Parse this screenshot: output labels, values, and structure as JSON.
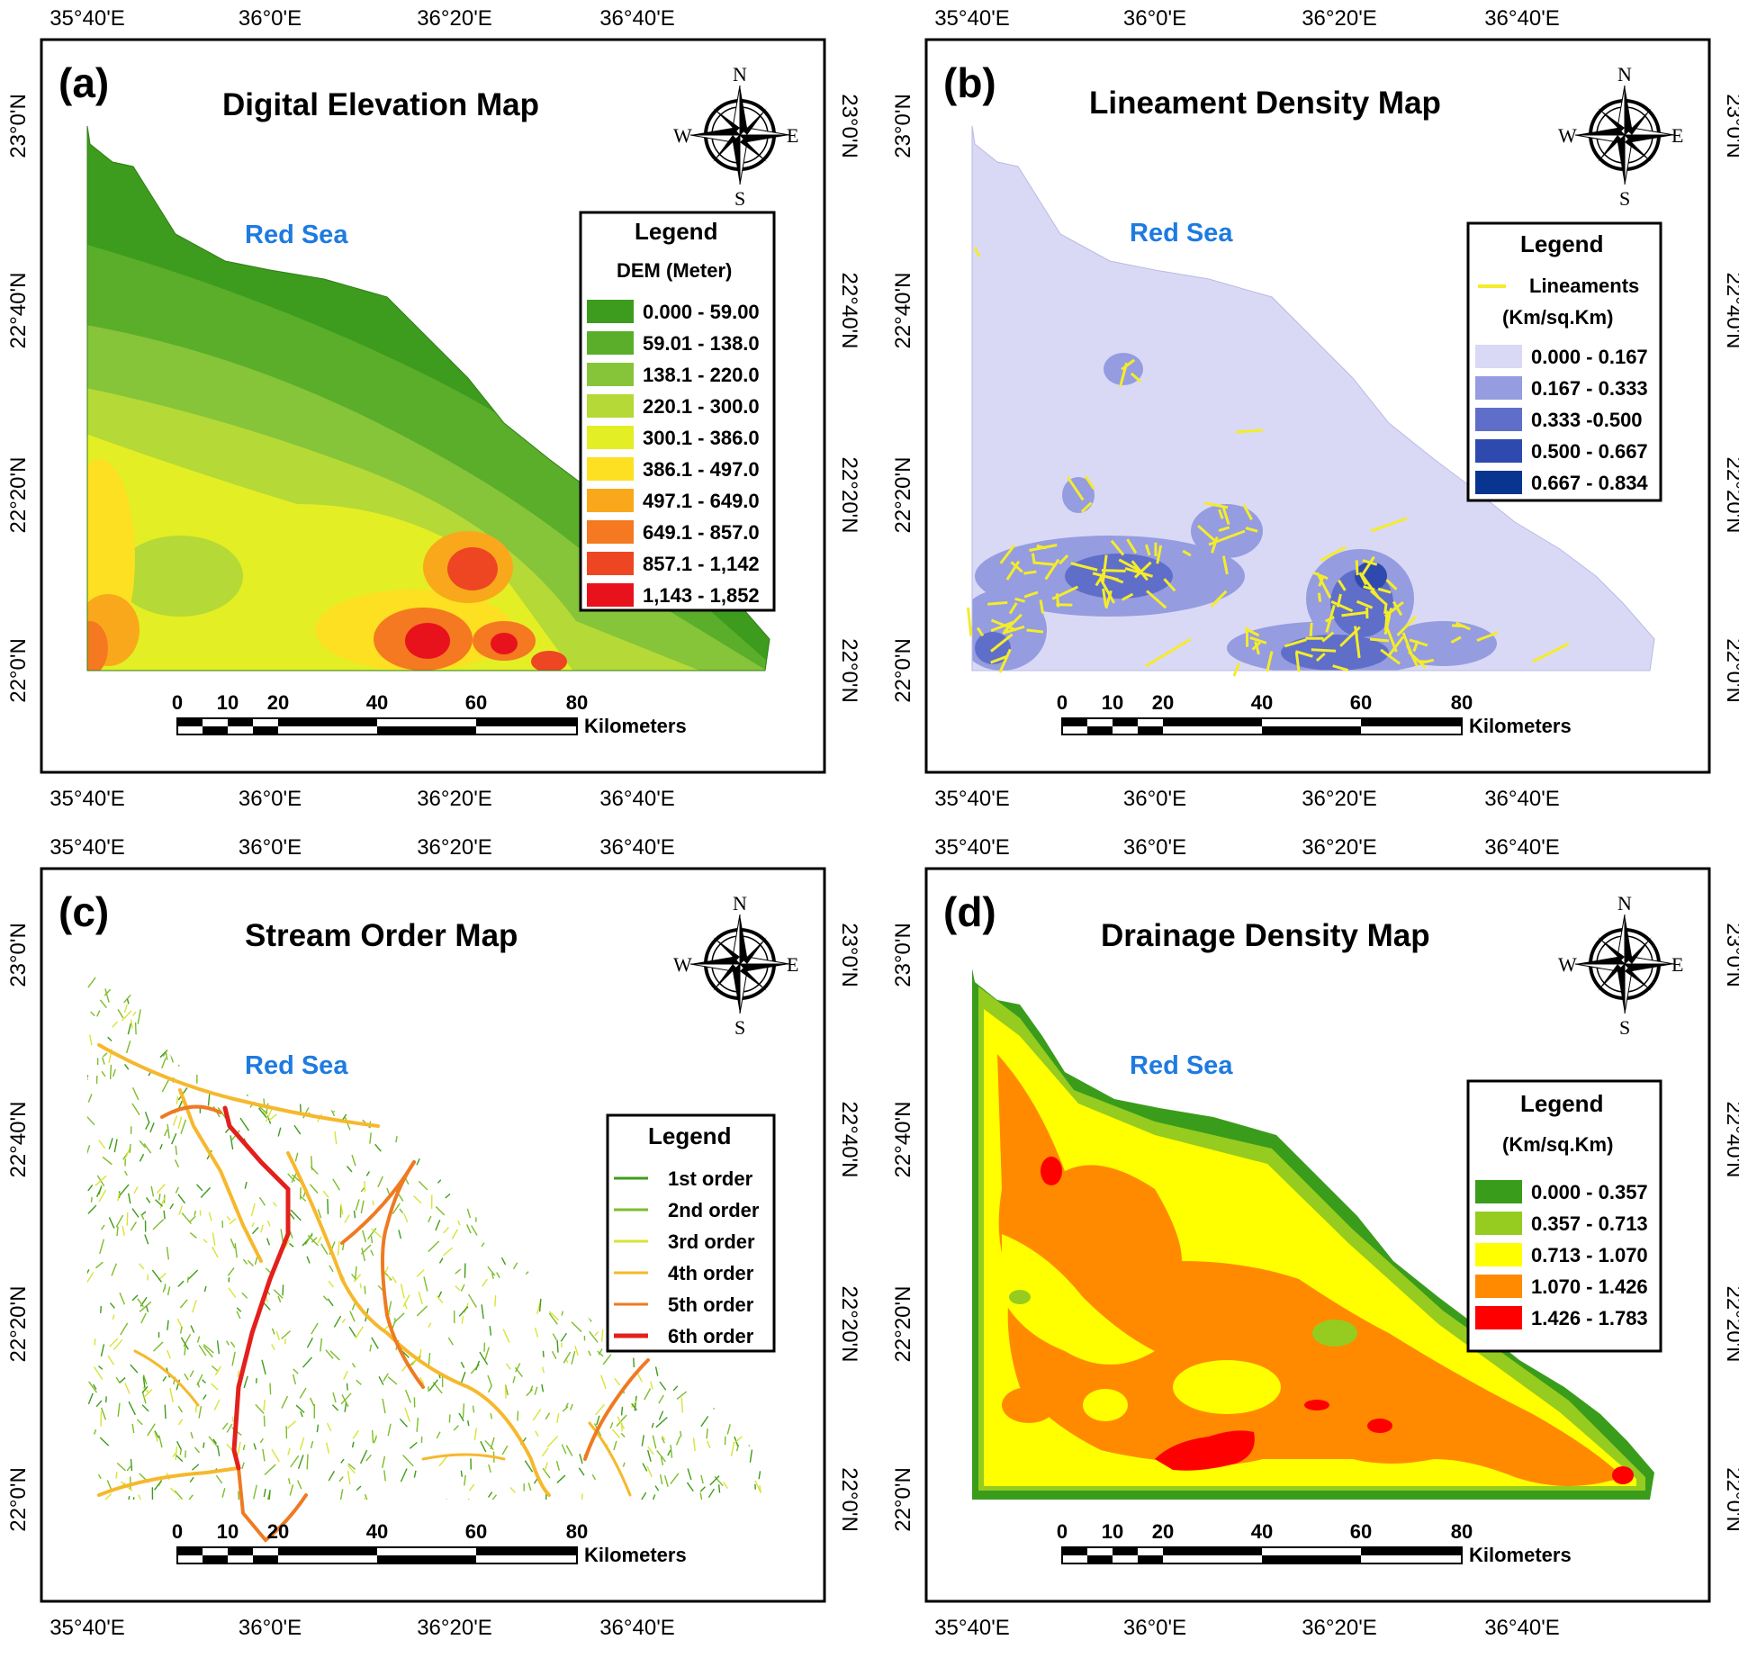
{
  "coords": {
    "lon_ticks": [
      "35°40'E",
      "36°0'E",
      "36°20'E",
      "36°40'E"
    ],
    "lat_ticks": [
      "23°0'N",
      "22°40'N",
      "22°20'N",
      "22°0'N"
    ]
  },
  "scale_bar": {
    "numbers": [
      "0",
      "10",
      "20",
      "40",
      "60",
      "80"
    ],
    "unit": "Kilometers"
  },
  "compass": {
    "n": "N",
    "s": "S",
    "e": "E",
    "w": "W"
  },
  "sea_label": "Red Sea",
  "panels": [
    {
      "letter": "(a)",
      "title": "Digital Elevation Map",
      "legend_title": "Legend",
      "legend_subtitle": "DEM (Meter)",
      "legend_items": [
        {
          "label": "0.000 - 59.00",
          "color": "#3d9b1e"
        },
        {
          "label": "59.01 - 138.0",
          "color": "#5aae2a"
        },
        {
          "label": "138.1 - 220.0",
          "color": "#86c43a"
        },
        {
          "label": "220.1 - 300.0",
          "color": "#b5d936"
        },
        {
          "label": "300.1 - 386.0",
          "color": "#e3ee24"
        },
        {
          "label": "386.1 - 497.0",
          "color": "#fde021"
        },
        {
          "label": "497.1 - 649.0",
          "color": "#f9a81b"
        },
        {
          "label": "649.1 - 857.0",
          "color": "#f47920"
        },
        {
          "label": "857.1 - 1,142",
          "color": "#ee4622"
        },
        {
          "label": "1,143 - 1,852",
          "color": "#e8121d"
        }
      ]
    },
    {
      "letter": "(b)",
      "title": "Lineament Density Map",
      "legend_title": "Legend",
      "legend_line_label": "Lineaments",
      "legend_line_color": "#f4ec2a",
      "legend_subtitle": "(Km/sq.Km)",
      "legend_items": [
        {
          "label": "0.000 - 0.167",
          "color": "#d9d9f5"
        },
        {
          "label": "0.167 - 0.333",
          "color": "#959ce0"
        },
        {
          "label": "0.333 -0.500",
          "color": "#5f6ec9"
        },
        {
          "label": "0.500 - 0.667",
          "color": "#2e4aae"
        },
        {
          "label": "0.667 - 0.834",
          "color": "#083590"
        }
      ]
    },
    {
      "letter": "(c)",
      "title": "Stream Order Map",
      "legend_title": "Legend",
      "legend_items": [
        {
          "label": "1st order",
          "color": "#3f9c1b"
        },
        {
          "label": "2nd order",
          "color": "#7dbd2a"
        },
        {
          "label": "3rd order",
          "color": "#d8e436"
        },
        {
          "label": "4th order",
          "color": "#f6b82c"
        },
        {
          "label": "5th order",
          "color": "#ef7a22"
        },
        {
          "label": "6th order",
          "color": "#e3201c"
        }
      ]
    },
    {
      "letter": "(d)",
      "title": "Drainage Density Map",
      "legend_title": "Legend",
      "legend_subtitle": "(Km/sq.Km)",
      "legend_items": [
        {
          "label": "0.000 - 0.357",
          "color": "#3a9c1b"
        },
        {
          "label": "0.357 - 0.713",
          "color": "#95cc1f"
        },
        {
          "label": "0.713 - 1.070",
          "color": "#ffff00"
        },
        {
          "label": "1.070 - 1.426",
          "color": "#ff8a00"
        },
        {
          "label": "1.426 - 1.783",
          "color": "#ff0000"
        }
      ]
    }
  ]
}
